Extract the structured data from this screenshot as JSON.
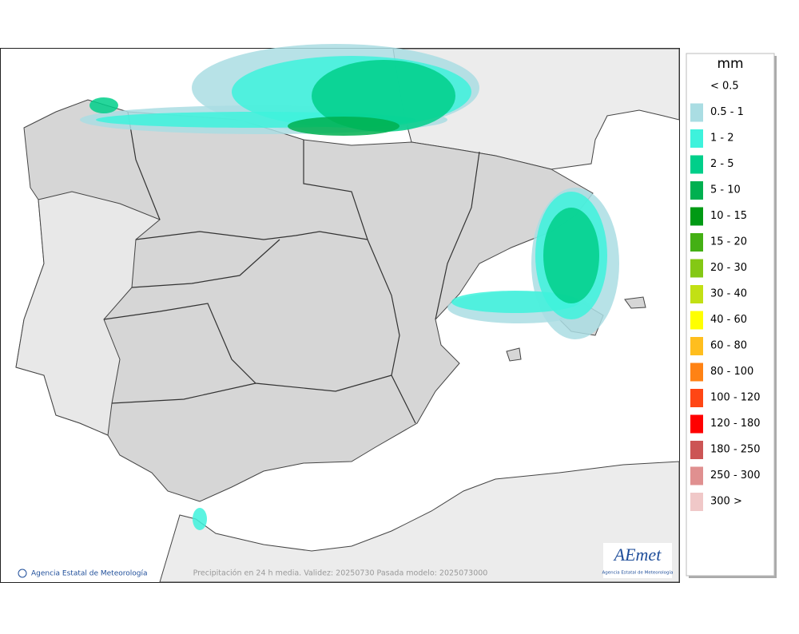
{
  "map": {
    "credit": "Agencia Estatal de Meteorología",
    "caption": "Precipitación en 24 h media. Validez: 20250730 Pasada modelo: 2025073000",
    "logo": {
      "name": "AEmet",
      "subtitle": "Agencia Estatal de Meteorología"
    }
  },
  "legend": {
    "title": "mm",
    "items": [
      {
        "label": "< 0.5",
        "color": "#ffffff"
      },
      {
        "label": "0.5 - 1",
        "color": "#aadde3"
      },
      {
        "label": "1 - 2",
        "color": "#3ef2dc"
      },
      {
        "label": "2 - 5",
        "color": "#00cf8a"
      },
      {
        "label": "5 - 10",
        "color": "#00b050"
      },
      {
        "label": "10 - 15",
        "color": "#009a14"
      },
      {
        "label": "15 - 20",
        "color": "#44b014"
      },
      {
        "label": "20 - 30",
        "color": "#84c814"
      },
      {
        "label": "30 - 40",
        "color": "#c2e014"
      },
      {
        "label": "40 - 60",
        "color": "#ffff00"
      },
      {
        "label": "60 - 80",
        "color": "#ffbe1e"
      },
      {
        "label": "80 - 100",
        "color": "#ff8214"
      },
      {
        "label": "100 - 120",
        "color": "#ff4614"
      },
      {
        "label": "120 - 180",
        "color": "#ff0000"
      },
      {
        "label": "180 - 250",
        "color": "#cc5555"
      },
      {
        "label": "250 - 300",
        "color": "#e09090"
      },
      {
        "label": "300 >",
        "color": "#f0c8c8"
      }
    ]
  }
}
